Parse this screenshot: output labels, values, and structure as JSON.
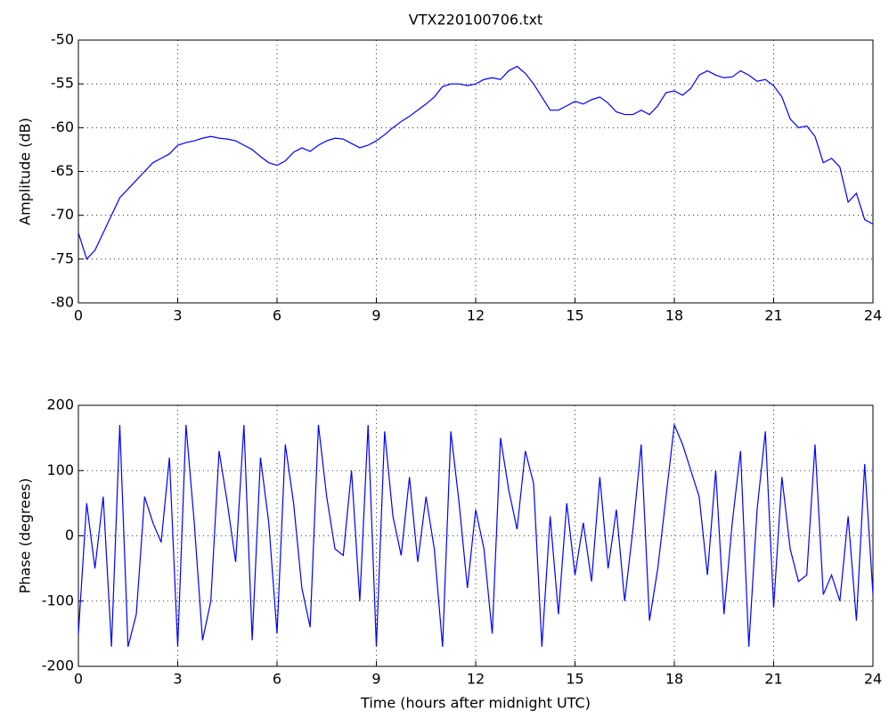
{
  "chart_data": [
    {
      "type": "line",
      "title": "VTX220100706.txt",
      "ylabel": "Amplitude (dB)",
      "grid": true,
      "xlim": [
        0,
        24
      ],
      "xticks": [
        0,
        3,
        6,
        9,
        12,
        15,
        18,
        21,
        24
      ],
      "ylim": [
        -80,
        -50
      ],
      "yticks": [
        -80,
        -75,
        -70,
        -65,
        -60,
        -55,
        -50
      ],
      "x": [
        0,
        0.25,
        0.5,
        0.75,
        1,
        1.25,
        1.5,
        1.75,
        2,
        2.25,
        2.5,
        2.75,
        3,
        3.25,
        3.5,
        3.75,
        4,
        4.25,
        4.5,
        4.75,
        5,
        5.25,
        5.5,
        5.75,
        6,
        6.25,
        6.5,
        6.75,
        7,
        7.25,
        7.5,
        7.75,
        8,
        8.25,
        8.5,
        8.75,
        9,
        9.25,
        9.5,
        9.75,
        10,
        10.25,
        10.5,
        10.75,
        11,
        11.25,
        11.5,
        11.75,
        12,
        12.25,
        12.5,
        12.75,
        13,
        13.25,
        13.5,
        13.75,
        14,
        14.25,
        14.5,
        14.75,
        15,
        15.25,
        15.5,
        15.75,
        16,
        16.25,
        16.5,
        16.75,
        17,
        17.25,
        17.5,
        17.75,
        18,
        18.25,
        18.5,
        18.75,
        19,
        19.25,
        19.5,
        19.75,
        20,
        20.25,
        20.5,
        20.75,
        21,
        21.25,
        21.5,
        21.75,
        22,
        22.25,
        22.5,
        22.75,
        23,
        23.25,
        23.5,
        23.75,
        24
      ],
      "series": [
        {
          "color": "#0000ff",
          "values": [
            -72,
            -75,
            -74,
            -72,
            -70,
            -68,
            -67,
            -66,
            -65,
            -64,
            -63.5,
            -63,
            -62,
            -61.7,
            -61.5,
            -61.2,
            -61,
            -61.2,
            -61.3,
            -61.5,
            -62,
            -62.5,
            -63.3,
            -64,
            -64.3,
            -63.8,
            -62.8,
            -62.3,
            -62.7,
            -62,
            -61.5,
            -61.2,
            -61.3,
            -61.8,
            -62.3,
            -62,
            -61.5,
            -60.8,
            -60,
            -59.3,
            -58.7,
            -58,
            -57.3,
            -56.5,
            -55.3,
            -55,
            -55,
            -55.2,
            -55,
            -54.5,
            -54.3,
            -54.5,
            -53.5,
            -53,
            -53.8,
            -55,
            -56.5,
            -58,
            -58,
            -57.5,
            -57,
            -57.3,
            -56.8,
            -56.5,
            -57.2,
            -58.2,
            -58.5,
            -58.5,
            -58,
            -58.5,
            -57.5,
            -56,
            -55.8,
            -56.3,
            -55.5,
            -54,
            -53.5,
            -54,
            -54.3,
            -54.2,
            -53.5,
            -54,
            -54.7,
            -54.5,
            -55.2,
            -56.5,
            -59,
            -60,
            -59.8,
            -61,
            -64,
            -63.5,
            -64.5,
            -68.5,
            -67.5,
            -70.5,
            -71
          ]
        }
      ]
    },
    {
      "type": "line",
      "ylabel": "Phase (degrees)",
      "xlabel": "Time (hours after midnight UTC)",
      "grid": true,
      "xlim": [
        0,
        24
      ],
      "xticks": [
        0,
        3,
        6,
        9,
        12,
        15,
        18,
        21,
        24
      ],
      "ylim": [
        -200,
        200
      ],
      "yticks": [
        -200,
        -100,
        0,
        100,
        200
      ],
      "x": [
        0,
        0.25,
        0.5,
        0.75,
        1,
        1.25,
        1.5,
        1.75,
        2,
        2.25,
        2.5,
        2.75,
        3,
        3.25,
        3.5,
        3.75,
        4,
        4.25,
        4.5,
        4.75,
        5,
        5.25,
        5.5,
        5.75,
        6,
        6.25,
        6.5,
        6.75,
        7,
        7.25,
        7.5,
        7.75,
        8,
        8.25,
        8.5,
        8.75,
        9,
        9.25,
        9.5,
        9.75,
        10,
        10.25,
        10.5,
        10.75,
        11,
        11.25,
        11.5,
        11.75,
        12,
        12.25,
        12.5,
        12.75,
        13,
        13.25,
        13.5,
        13.75,
        14,
        14.25,
        14.5,
        14.75,
        15,
        15.25,
        15.5,
        15.75,
        16,
        16.25,
        16.5,
        16.75,
        17,
        17.25,
        17.5,
        17.75,
        18,
        18.25,
        18.5,
        18.75,
        19,
        19.25,
        19.5,
        19.75,
        20,
        20.25,
        20.5,
        20.75,
        21,
        21.25,
        21.5,
        21.75,
        22,
        22.25,
        22.5,
        22.75,
        23,
        23.25,
        23.5,
        23.75,
        24
      ],
      "series": [
        {
          "color": "#0000ff",
          "values": [
            -150,
            50,
            -50,
            60,
            -170,
            170,
            -170,
            -120,
            60,
            20,
            -10,
            120,
            -170,
            170,
            20,
            -160,
            -100,
            130,
            50,
            -40,
            170,
            -160,
            120,
            20,
            -150,
            140,
            50,
            -80,
            -140,
            170,
            60,
            -20,
            -30,
            100,
            -100,
            170,
            -170,
            160,
            30,
            -30,
            90,
            -40,
            60,
            -20,
            -170,
            160,
            50,
            -80,
            40,
            -20,
            -150,
            150,
            70,
            10,
            130,
            80,
            -170,
            30,
            -120,
            50,
            -60,
            20,
            -70,
            90,
            -50,
            40,
            -100,
            10,
            140,
            -130,
            -50,
            60,
            170,
            140,
            100,
            60,
            -60,
            100,
            -120,
            20,
            130,
            -170,
            40,
            160,
            -110,
            90,
            -20,
            -70,
            -60,
            140,
            -90,
            -60,
            -100,
            30,
            -130,
            110,
            -90
          ]
        }
      ]
    }
  ]
}
